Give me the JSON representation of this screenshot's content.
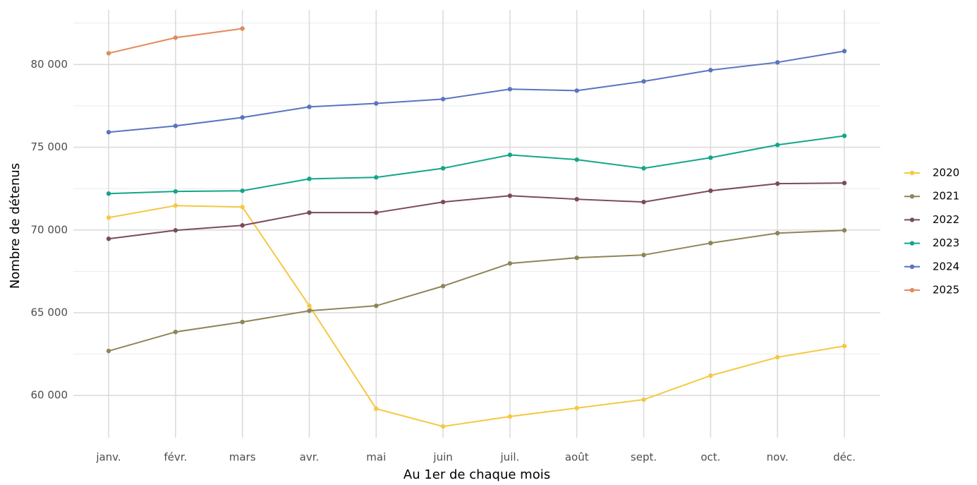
{
  "chart_data": {
    "type": "line",
    "x_label": "Au 1er de chaque mois",
    "y_label": "Nombre de détenus",
    "categories": [
      "janv.",
      "févr.",
      "mars",
      "avr.",
      "mai",
      "juin",
      "juil.",
      "août",
      "sept.",
      "oct.",
      "nov.",
      "déc."
    ],
    "series": [
      {
        "name": "2020",
        "color": "#f5c842",
        "values": [
          70750,
          71475,
          71390,
          65420,
          59200,
          58130,
          58730,
          59240,
          59750,
          61200,
          62310,
          62990
        ]
      },
      {
        "name": "2021",
        "color": "#8e8558",
        "values": [
          62690,
          63840,
          64440,
          65120,
          65420,
          66610,
          67980,
          68320,
          68490,
          69210,
          69810,
          69980
        ]
      },
      {
        "name": "2022",
        "color": "#7b4a5e",
        "values": [
          69470,
          69980,
          70280,
          71050,
          71050,
          71690,
          72070,
          71860,
          71690,
          72370,
          72800,
          72840
        ]
      },
      {
        "name": "2023",
        "color": "#14a58a",
        "values": [
          72200,
          72330,
          72370,
          73090,
          73180,
          73730,
          74540,
          74250,
          73730,
          74370,
          75140,
          75690
        ]
      },
      {
        "name": "2024",
        "color": "#5a74c0",
        "values": [
          75910,
          76290,
          76800,
          77440,
          77650,
          77910,
          78510,
          78420,
          78980,
          79660,
          80130,
          80810
        ]
      },
      {
        "name": "2025",
        "color": "#e28a5c",
        "values": [
          80680,
          81620,
          82170,
          null,
          null,
          null,
          null,
          null,
          null,
          null,
          null,
          null
        ]
      }
    ],
    "ylim": [
      57450,
      83300
    ],
    "yticks": [
      {
        "value": 60000,
        "label": "60 000"
      },
      {
        "value": 65000,
        "label": "65 000"
      },
      {
        "value": 70000,
        "label": "70 000"
      },
      {
        "value": 75000,
        "label": "75 000"
      },
      {
        "value": 80000,
        "label": "80 000"
      }
    ],
    "yminorticks": [
      62500,
      67500,
      72500,
      77500,
      82500
    ],
    "grid": true,
    "legend": "right"
  }
}
